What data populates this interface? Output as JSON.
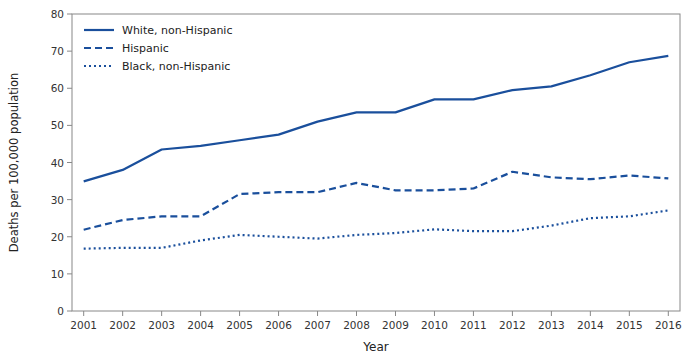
{
  "chart_data": {
    "type": "line",
    "x": [
      2001,
      2002,
      2003,
      2004,
      2005,
      2006,
      2007,
      2008,
      2009,
      2010,
      2011,
      2012,
      2013,
      2014,
      2015,
      2016
    ],
    "xlabel": "Year",
    "ylabel": "Deaths per 100,000 population",
    "xlim": [
      2000.7,
      2016.3
    ],
    "xticks": [
      2001,
      2002,
      2003,
      2004,
      2005,
      2006,
      2007,
      2008,
      2009,
      2010,
      2011,
      2012,
      2013,
      2014,
      2015,
      2016
    ],
    "ylim": [
      0,
      80
    ],
    "yticks": [
      0,
      10,
      20,
      30,
      40,
      50,
      60,
      70,
      80
    ],
    "grid": false,
    "legend": "upper left",
    "color": "#1a4f9c",
    "series": [
      {
        "name": "White, non-Hispanic",
        "line_style": "solid",
        "values": [
          34.9,
          38.0,
          43.5,
          44.5,
          46.0,
          47.5,
          51.0,
          53.5,
          53.5,
          57.0,
          57.0,
          59.5,
          60.5,
          63.5,
          67.0,
          68.7
        ]
      },
      {
        "name": "Hispanic",
        "line_style": "dashed",
        "values": [
          21.9,
          24.5,
          25.5,
          25.5,
          31.5,
          32.0,
          32.0,
          34.5,
          32.5,
          32.5,
          33.0,
          37.5,
          36.0,
          35.5,
          36.5,
          35.7
        ]
      },
      {
        "name": "Black, non-Hispanic",
        "line_style": "dotted",
        "values": [
          16.8,
          17.0,
          17.0,
          19.0,
          20.5,
          20.0,
          19.5,
          20.5,
          21.0,
          22.0,
          21.5,
          21.5,
          23.0,
          25.0,
          25.5,
          27.1
        ]
      }
    ]
  }
}
